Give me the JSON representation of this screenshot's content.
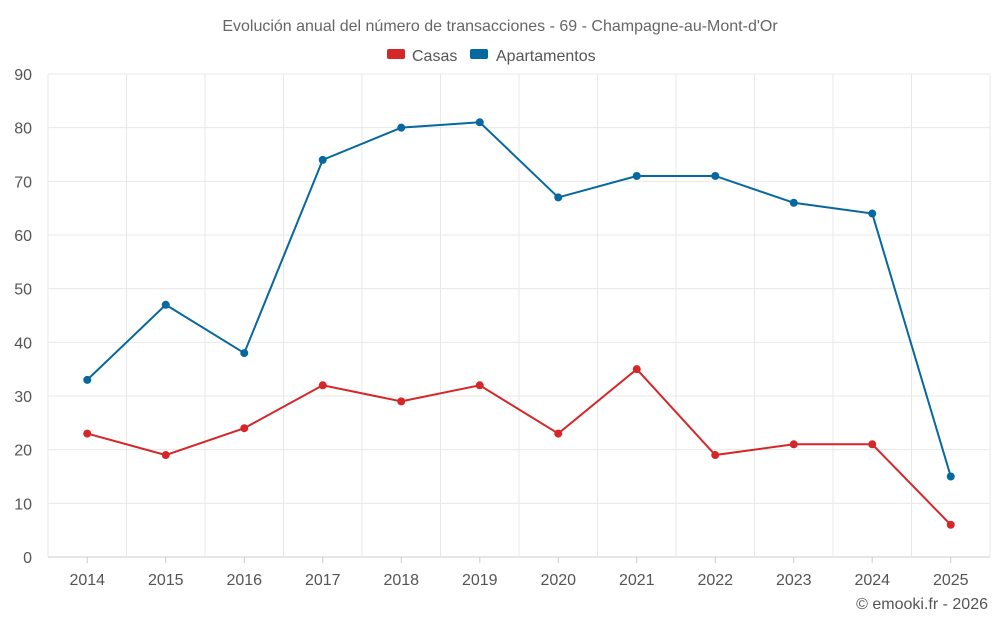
{
  "chart_data": {
    "type": "line",
    "title": "Evolución anual del número de transacciones - 69 - Champagne-au-Mont-d'Or",
    "categories": [
      "2014",
      "2015",
      "2016",
      "2017",
      "2018",
      "2019",
      "2020",
      "2021",
      "2022",
      "2023",
      "2024",
      "2025"
    ],
    "series": [
      {
        "name": "Casas",
        "color": "#d62728",
        "values": [
          23,
          19,
          24,
          32,
          29,
          32,
          23,
          35,
          19,
          21,
          21,
          6
        ]
      },
      {
        "name": "Apartamentos",
        "color": "#05689e",
        "values": [
          33,
          47,
          38,
          74,
          80,
          81,
          67,
          71,
          71,
          66,
          64,
          15
        ]
      }
    ],
    "ylim": [
      0,
      90
    ],
    "yticks": [
      "0",
      "10",
      "20",
      "30",
      "40",
      "50",
      "60",
      "70",
      "80",
      "90"
    ],
    "grid": true,
    "legend_position": "top-center",
    "xlabel": "",
    "ylabel": ""
  },
  "credit": "© emooki.fr - 2026"
}
